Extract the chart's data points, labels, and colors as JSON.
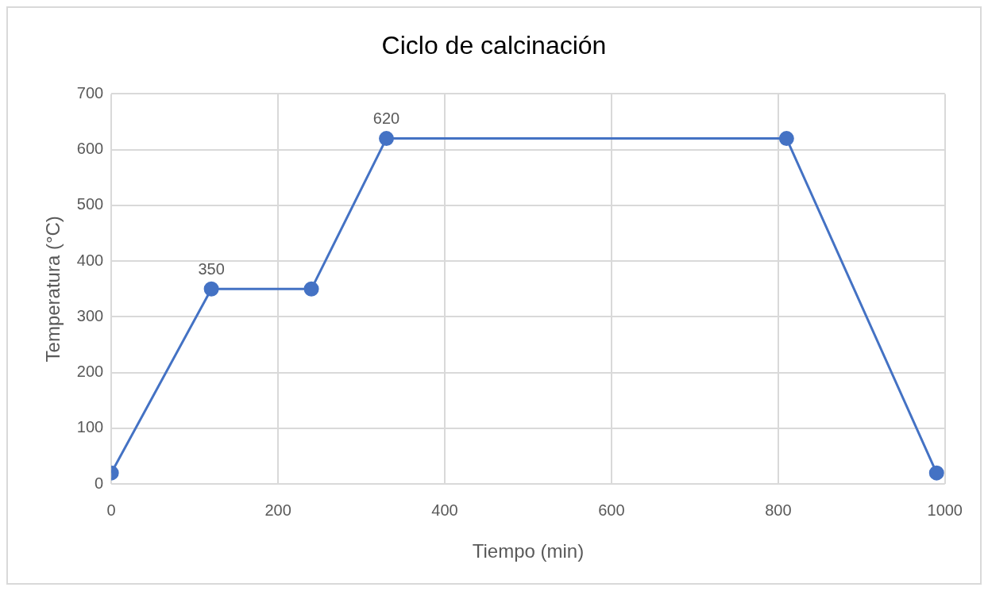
{
  "chart_data": {
    "type": "line",
    "title": "Ciclo de calcinación",
    "xlabel": "Tiempo (min)",
    "ylabel": "Temperatura (°C)",
    "x": [
      0,
      120,
      240,
      330,
      810,
      990
    ],
    "values": [
      20,
      350,
      350,
      620,
      620,
      20
    ],
    "value_labels": [
      null,
      "350",
      null,
      "620",
      null,
      null
    ],
    "color": "#4472c4",
    "marker": "circle",
    "line_style": "solid",
    "xlim": [
      0,
      1000
    ],
    "xticks": [
      0,
      200,
      400,
      600,
      800,
      1000
    ],
    "ylim": [
      0,
      700
    ],
    "yticks": [
      0,
      100,
      200,
      300,
      400,
      500,
      600,
      700
    ],
    "grid": true,
    "legend": false
  }
}
